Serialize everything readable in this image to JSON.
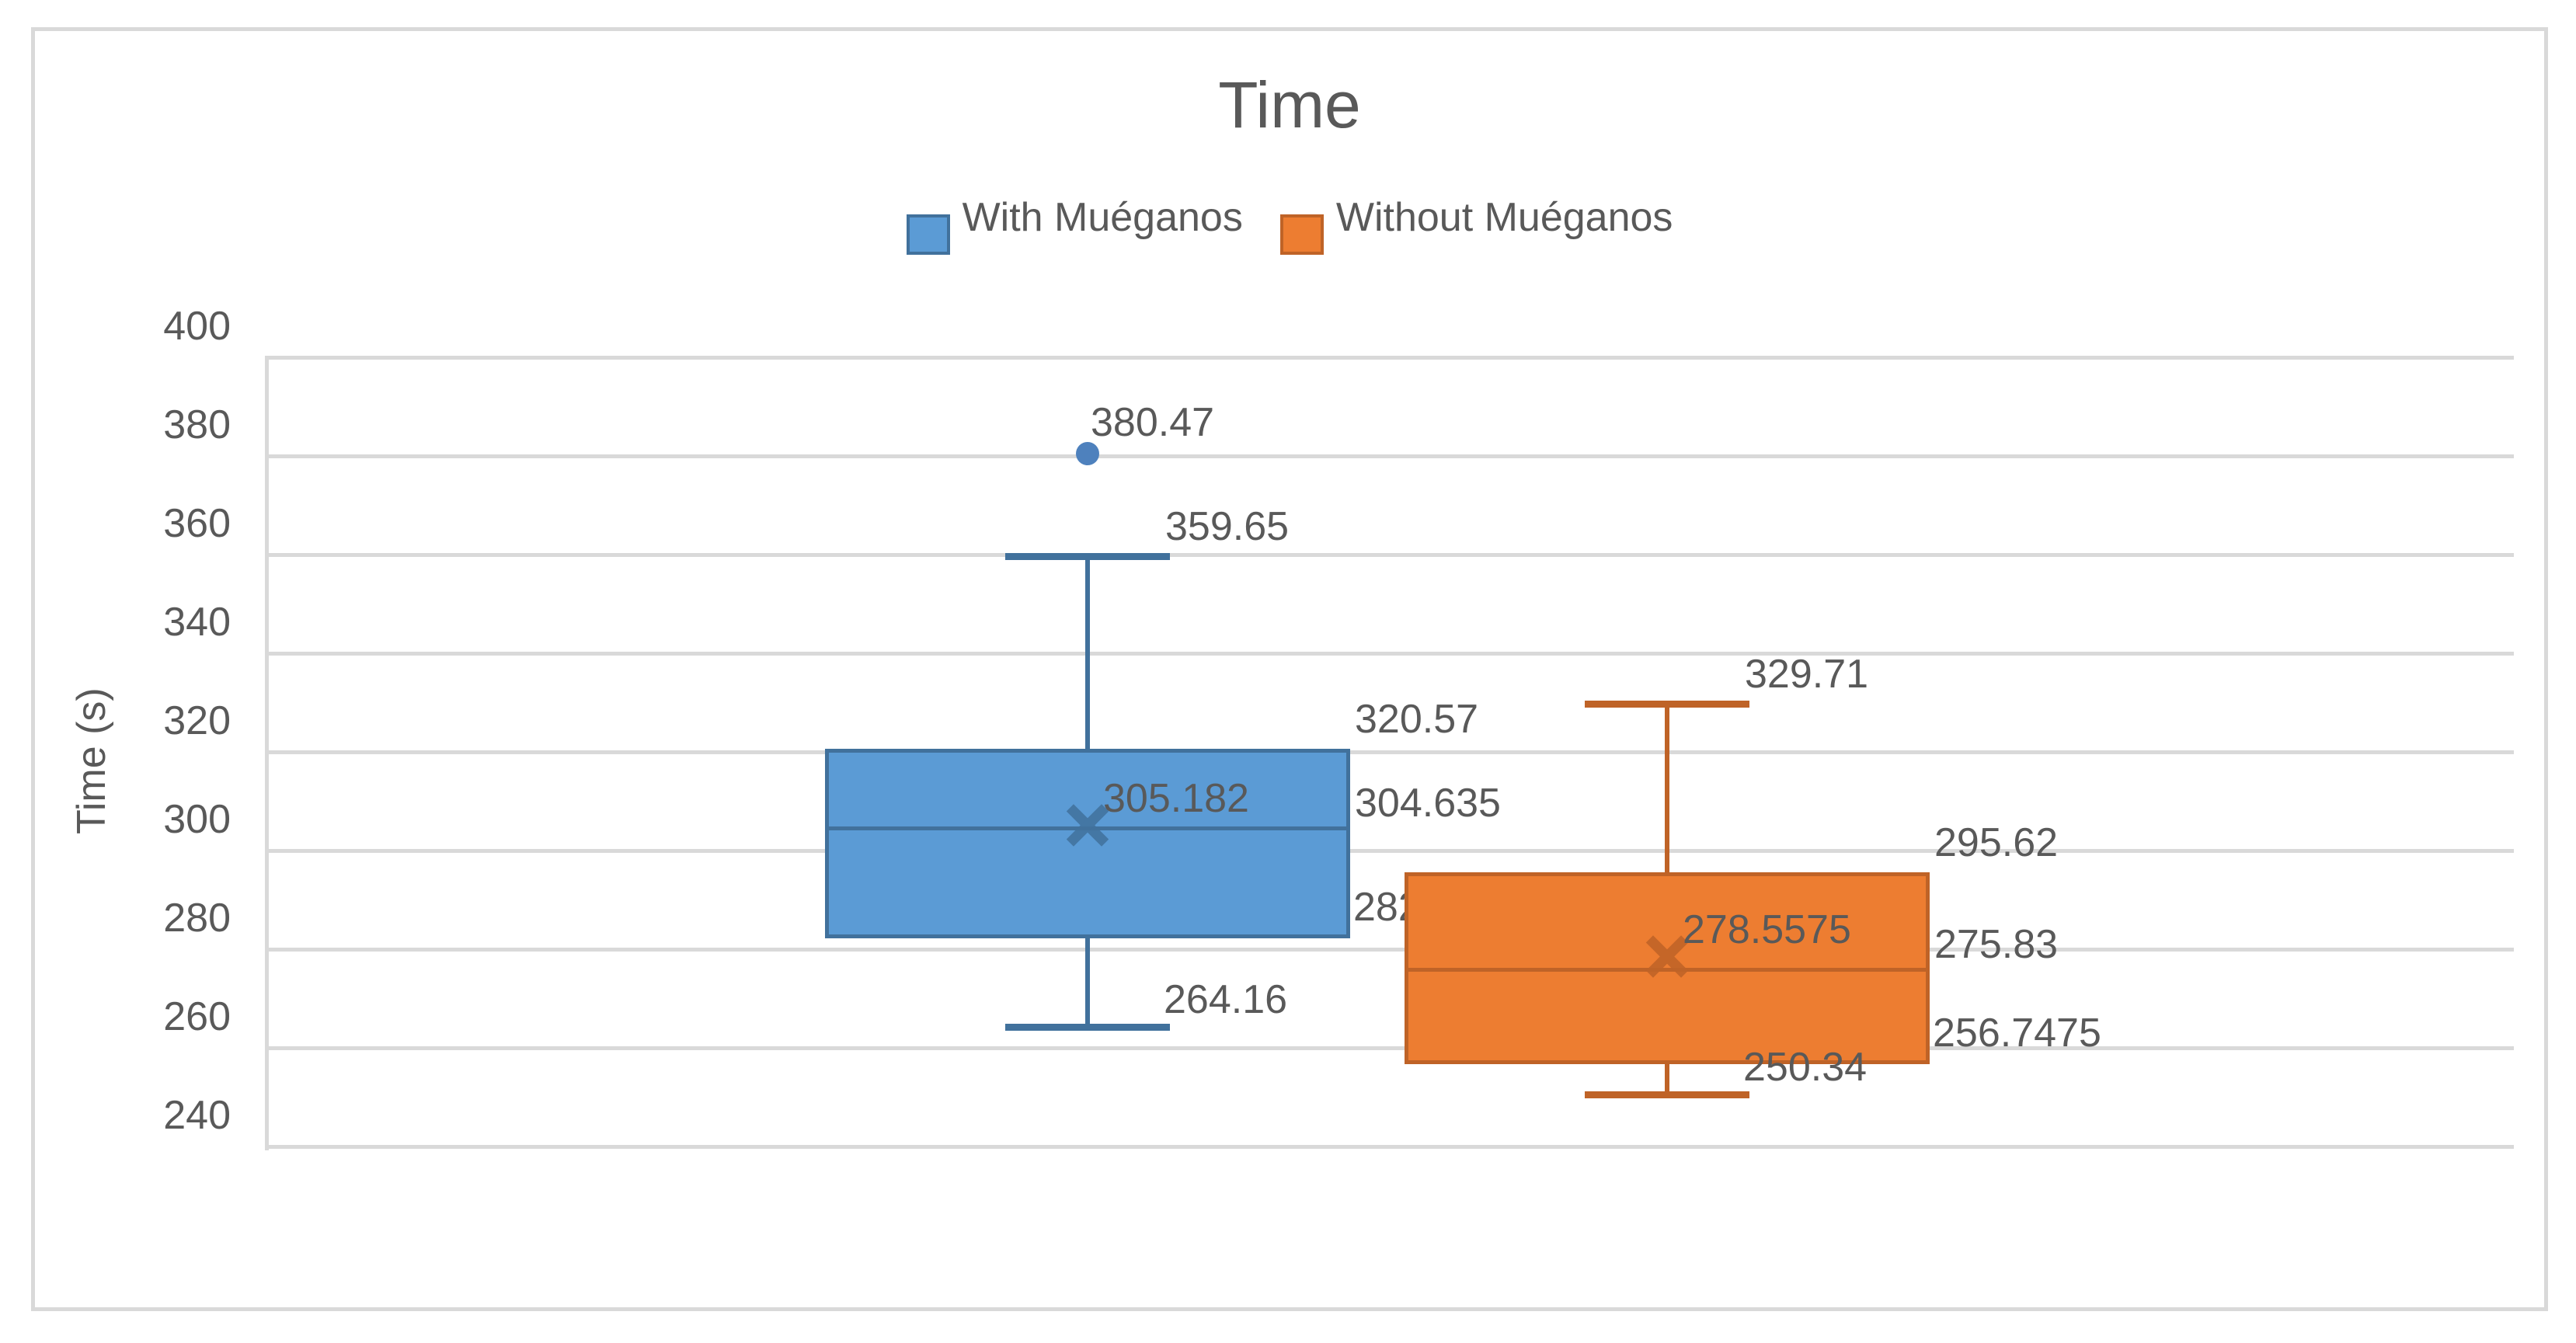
{
  "chart_data": {
    "type": "boxplot",
    "title": "Time",
    "ylabel": "Time (s)",
    "ylim": [
      240,
      400
    ],
    "ytick_step": 20,
    "yticks": [
      400,
      380,
      360,
      340,
      320,
      300,
      280,
      260,
      240
    ],
    "grid": true,
    "legend_position": "top-center",
    "axis_text_color": "#595959",
    "gridline_color": "#D9D9D9",
    "chart_border_color": "#D9D9D9",
    "series": [
      {
        "name": "With Muéganos",
        "fill_color": "#5B9BD5",
        "line_color": "#41719C",
        "marker_color": "#4E81BD",
        "min": 264.16,
        "q1": 282.2025,
        "median": 304.635,
        "q3": 320.57,
        "max": 359.65,
        "mean": 305.182,
        "outliers": [
          380.47
        ],
        "labels": {
          "outlier": "380.47",
          "max": "359.65",
          "q3": "320.57",
          "mean": "305.182",
          "median": "304.635",
          "q1": "282.2025",
          "min": "264.16"
        }
      },
      {
        "name": "Without Muéganos",
        "fill_color": "#ED7D31",
        "line_color": "#BF6327",
        "marker_color": "#CD8550",
        "min": 250.34,
        "q1": 256.7475,
        "median": 275.83,
        "q3": 295.62,
        "max": 329.71,
        "mean": 278.5575,
        "outliers": [],
        "labels": {
          "max": "329.71",
          "q3": "295.62",
          "mean": "278.5575",
          "median": "275.83",
          "q1": "256.7475",
          "min": "250.34"
        }
      }
    ]
  }
}
